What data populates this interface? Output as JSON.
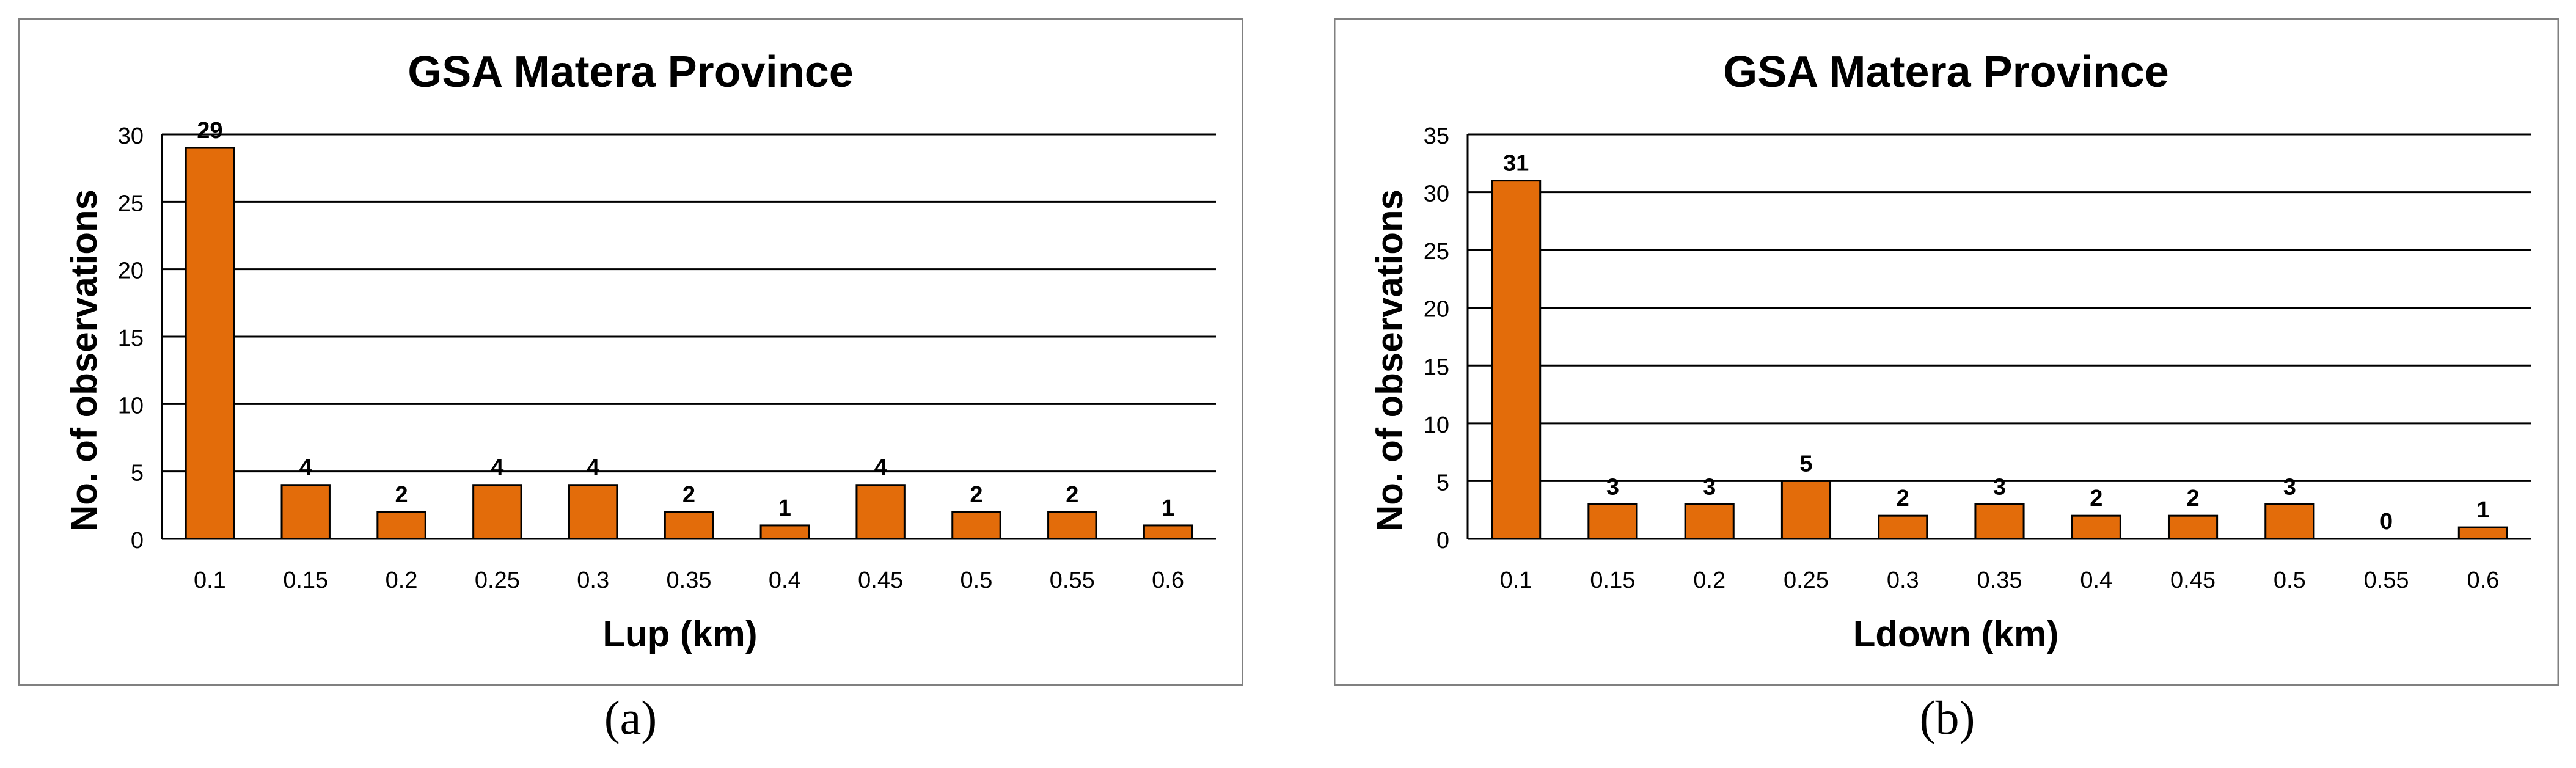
{
  "colors": {
    "bar_fill": "#E36C0A",
    "bar_stroke": "#000000",
    "grid": "#000000",
    "frame": "#808080"
  },
  "chart_data": [
    {
      "type": "bar",
      "title": "GSA Matera Province",
      "xlabel": "Lup (km)",
      "ylabel": "No. of observations",
      "categories": [
        "0.1",
        "0.15",
        "0.2",
        "0.25",
        "0.3",
        "0.35",
        "0.4",
        "0.45",
        "0.5",
        "0.55",
        "0.6"
      ],
      "values": [
        29,
        4,
        2,
        4,
        4,
        2,
        1,
        4,
        2,
        2,
        1
      ],
      "data_labels": [
        "29",
        "4",
        "2",
        "4",
        "4",
        "2",
        "1",
        "4",
        "2",
        "2",
        "1"
      ],
      "ylim": [
        0,
        30
      ],
      "yticks": [
        0,
        5,
        10,
        15,
        20,
        25,
        30
      ],
      "ytick_labels": [
        "0",
        "5",
        "10",
        "15",
        "20",
        "25",
        "30"
      ],
      "grid": true,
      "legend": "none",
      "panel_label": "(a)"
    },
    {
      "type": "bar",
      "title": "GSA Matera Province",
      "xlabel": "Ldown (km)",
      "ylabel": "No. of observations",
      "categories": [
        "0.1",
        "0.15",
        "0.2",
        "0.25",
        "0.3",
        "0.35",
        "0.4",
        "0.45",
        "0.5",
        "0.55",
        "0.6"
      ],
      "values": [
        31,
        3,
        3,
        5,
        2,
        3,
        2,
        2,
        3,
        0,
        1
      ],
      "data_labels": [
        "31",
        "3",
        "3",
        "5",
        "2",
        "3",
        "2",
        "2",
        "3",
        "0",
        "1"
      ],
      "ylim": [
        0,
        35
      ],
      "yticks": [
        0,
        5,
        10,
        15,
        20,
        25,
        30,
        35
      ],
      "ytick_labels": [
        "0",
        "5",
        "10",
        "15",
        "20",
        "25",
        "30",
        "35"
      ],
      "grid": true,
      "legend": "none",
      "panel_label": "(b)"
    }
  ]
}
